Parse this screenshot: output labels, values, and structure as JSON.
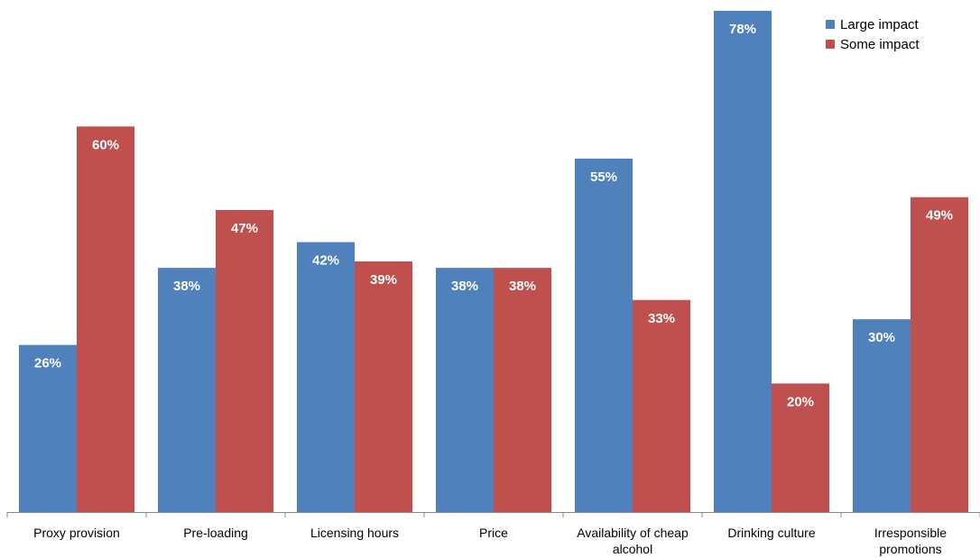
{
  "chart_data": {
    "type": "bar",
    "title": "",
    "xlabel": "",
    "ylabel": "",
    "ylim": [
      0,
      80
    ],
    "grid": false,
    "legend_position": "top-right",
    "categories": [
      [
        "Proxy provision"
      ],
      [
        "Pre-loading"
      ],
      [
        "Licensing hours"
      ],
      [
        "Price"
      ],
      [
        "Availability of cheap",
        "alcohol"
      ],
      [
        "Drinking culture"
      ],
      [
        "Irresponsible",
        "promotions"
      ]
    ],
    "series": [
      {
        "name": "Large impact",
        "color": "#4F81BD",
        "values": [
          26,
          38,
          42,
          38,
          55,
          78,
          30
        ],
        "labels": [
          "26%",
          "38%",
          "42%",
          "38%",
          "55%",
          "78%",
          "30%"
        ]
      },
      {
        "name": "Some impact",
        "color": "#C0504D",
        "values": [
          60,
          47,
          39,
          38,
          33,
          20,
          49
        ],
        "labels": [
          "60%",
          "47%",
          "39%",
          "38%",
          "33%",
          "20%",
          "49%"
        ]
      }
    ]
  }
}
